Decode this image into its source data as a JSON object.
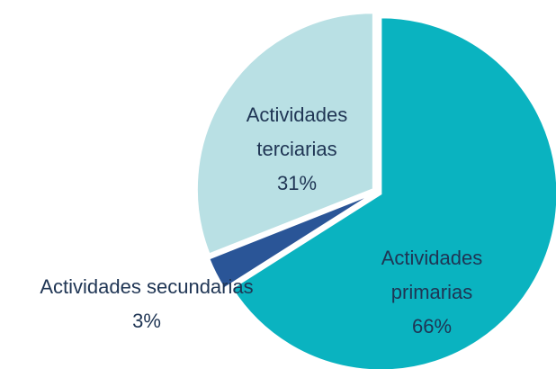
{
  "chart_data": {
    "type": "pie",
    "categories": [
      "Actividades primarias",
      "Actividades secundarias",
      "Actividades terciarias"
    ],
    "values": [
      66,
      3,
      31
    ],
    "value_labels": [
      "66%",
      "3%",
      "31%"
    ],
    "colors": [
      "#0ab3c0",
      "#2a5597",
      "#b9e0e4"
    ]
  }
}
